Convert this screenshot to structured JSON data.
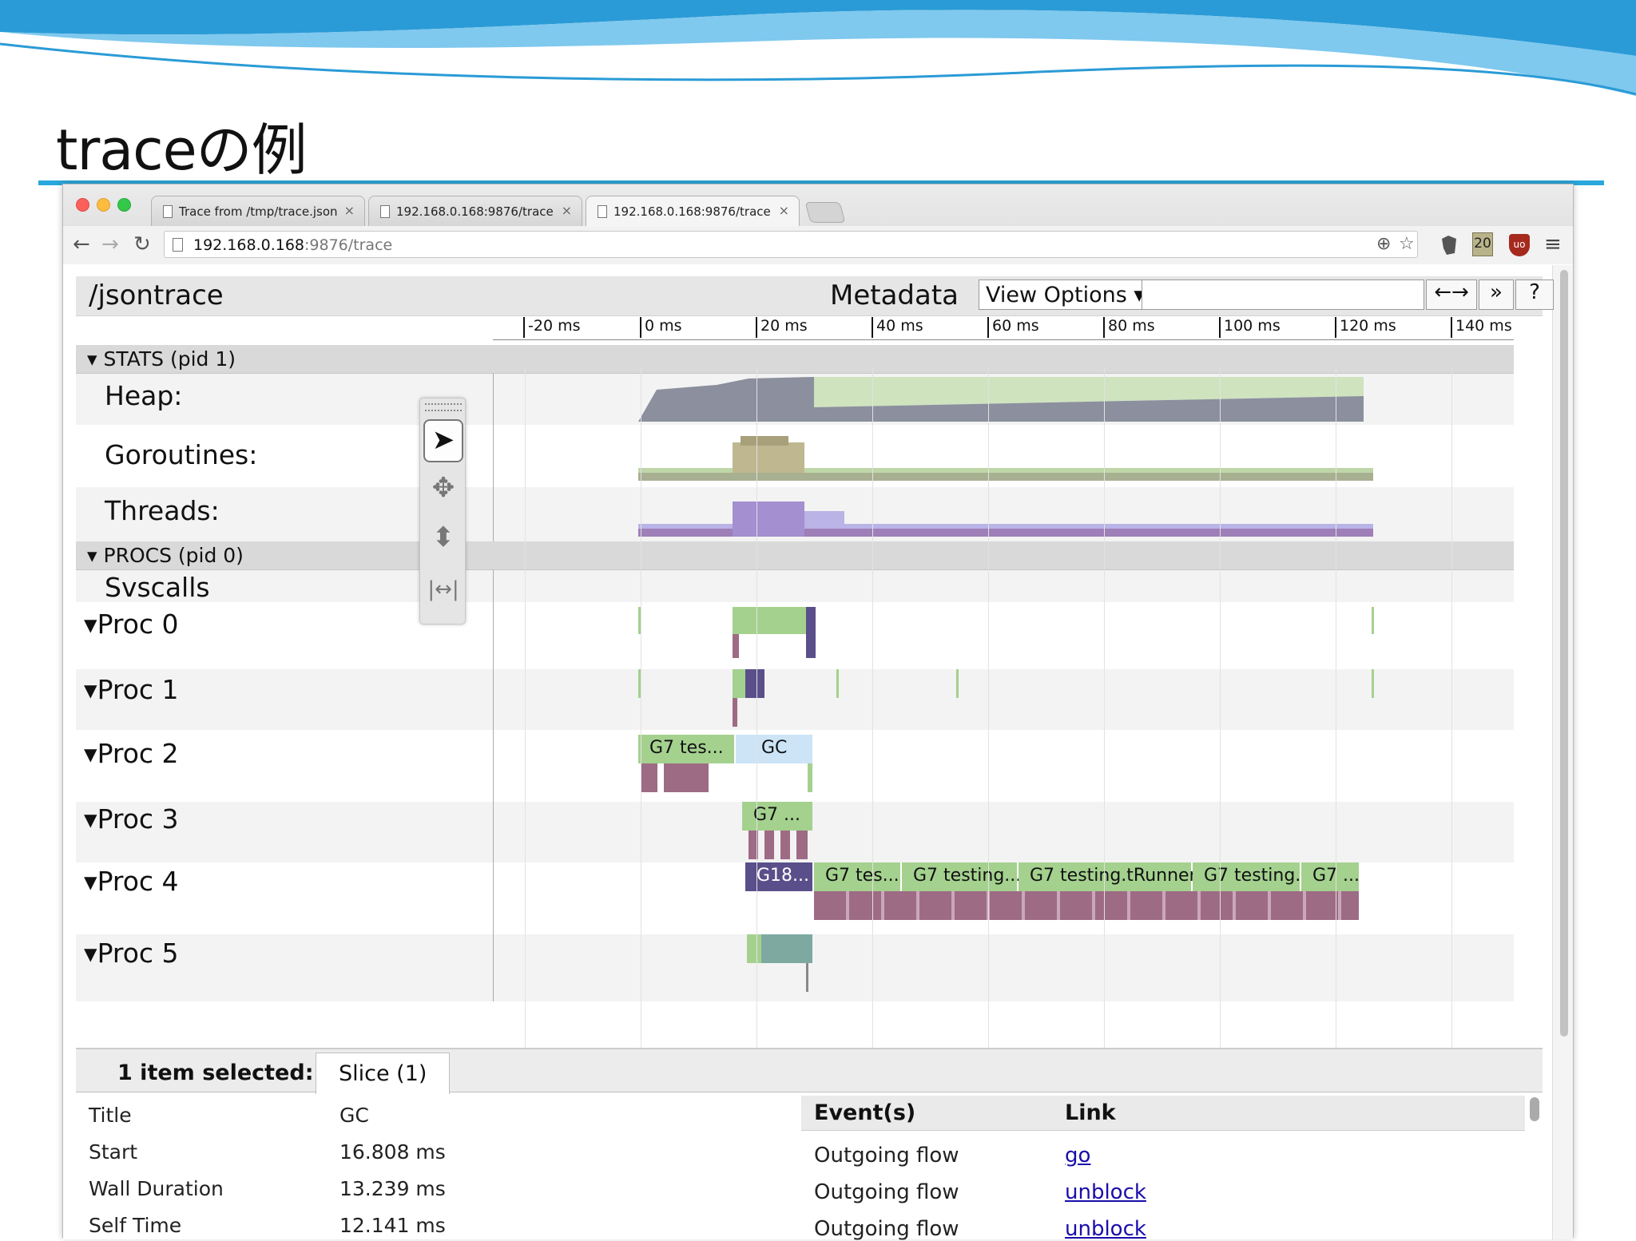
{
  "slide": {
    "title": "traceの例"
  },
  "browser": {
    "tabs": [
      {
        "label": "Trace from /tmp/trace.json",
        "close": "×"
      },
      {
        "label": "192.168.0.168:9876/trace",
        "close": "×"
      },
      {
        "label": "192.168.0.168:9876/trace",
        "close": "×"
      }
    ],
    "nav": {
      "back": "←",
      "forward": "→",
      "reload": "↻"
    },
    "url": {
      "host": "192.168.0.168",
      "rest": ":9876/trace"
    },
    "toolbar": {
      "zoom": "⊕",
      "star": "☆",
      "ext_badge": "20",
      "ublock": "uo",
      "menu": "≡"
    }
  },
  "trace": {
    "title": "/jsontrace",
    "metadata": "Metadata",
    "view_options": "View Options ▾",
    "nav_buttons": [
      "←→",
      "»",
      "?"
    ],
    "ruler_ticks": [
      "-20 ms",
      "0 ms",
      "20 ms",
      "40 ms",
      "60 ms",
      "80 ms",
      "100 ms",
      "120 ms",
      "140 ms"
    ],
    "sections": [
      {
        "label": "▾ STATS (pid 1)"
      },
      {
        "label": "▾ PROCS (pid 0)"
      }
    ],
    "counters": [
      {
        "label": "Heap:",
        "color": "#8b8f9e",
        "accent": "#cfe3bf"
      },
      {
        "label": "Goroutines:",
        "color": "#a8b092",
        "accent": "#bfd6a8"
      },
      {
        "label": "Threads:",
        "color": "#9e7fb8",
        "accent": "#b9b3e6"
      }
    ],
    "svscalls": "Svscalls",
    "procs": [
      {
        "label": "▾Proc 0"
      },
      {
        "label": "▾Proc 1"
      },
      {
        "label": "▾Proc 2"
      },
      {
        "label": "▾Proc 3"
      },
      {
        "label": "▾Proc 4"
      },
      {
        "label": "▾Proc 5"
      }
    ],
    "slices": {
      "proc2": [
        "G7 tes...",
        "GC"
      ],
      "proc3": [
        "G7 ..."
      ],
      "proc4": [
        "G18...",
        "G7 tes...",
        "G7 testing...",
        "G7 testing.tRunner",
        "G7 testing...",
        "G7 ..."
      ]
    },
    "tools": {
      "select": "➤",
      "pan": "✥",
      "zoom": "⬍",
      "timing": "|↔|"
    },
    "colors": {
      "green": "#a4d18e",
      "purple": "#9e6b85",
      "lightblue": "#cce4f6",
      "navy": "#5a4f8a",
      "teal": "#7ea9a0"
    }
  },
  "analysis": {
    "selected": "1 item selected:",
    "tab": "Slice (1)",
    "rows": [
      {
        "key": "Title",
        "value": "GC"
      },
      {
        "key": "Start",
        "value": "16.808 ms"
      },
      {
        "key": "Wall Duration",
        "value": "13.239 ms"
      },
      {
        "key": "Self Time",
        "value": "12.141 ms"
      }
    ],
    "events_header": {
      "events": "Event(s)",
      "link": "Link"
    },
    "events": [
      {
        "event": "Outgoing flow",
        "link": "go"
      },
      {
        "event": "Outgoing flow",
        "link": "unblock"
      },
      {
        "event": "Outgoing flow",
        "link": "unblock"
      }
    ]
  }
}
